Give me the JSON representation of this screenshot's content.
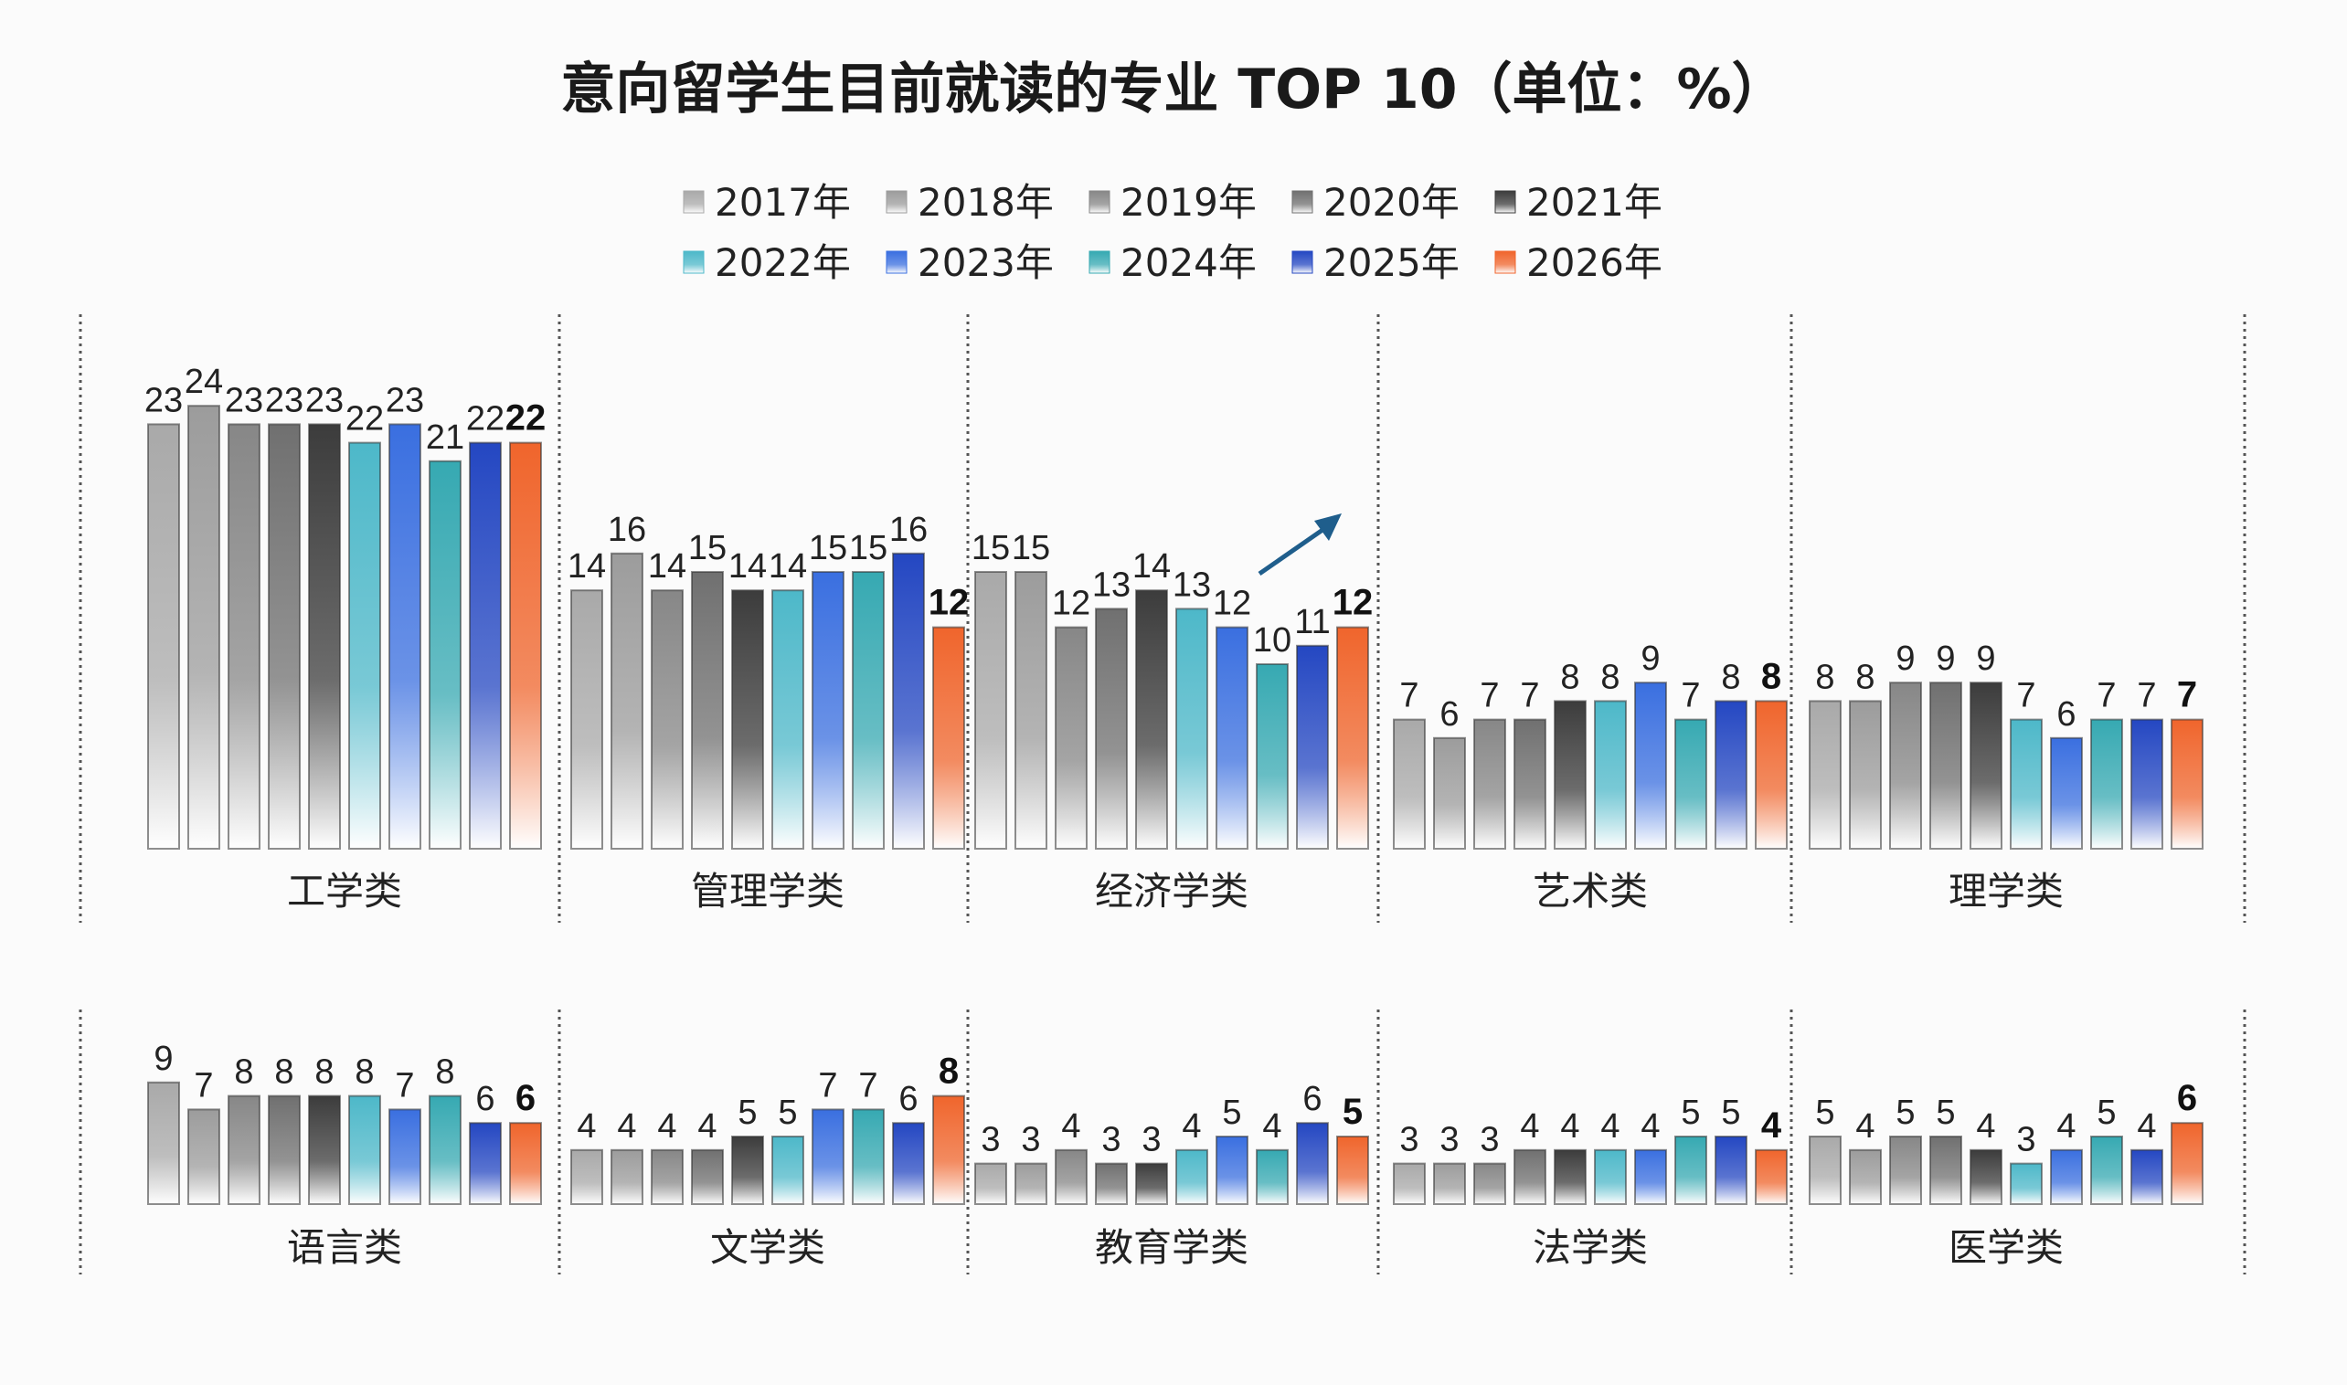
{
  "chart_data": {
    "type": "bar",
    "title": "意向留学生目前就读的专业 TOP 10（单位：%）",
    "legend_placement": "top",
    "grid": false,
    "series": [
      {
        "name": "2017年",
        "color": "#a9a9a9"
      },
      {
        "name": "2018年",
        "color": "#9c9c9c"
      },
      {
        "name": "2019年",
        "color": "#878787"
      },
      {
        "name": "2020年",
        "color": "#707070"
      },
      {
        "name": "2021年",
        "color": "#3c3c3c"
      },
      {
        "name": "2022年",
        "color": "#4db8c9"
      },
      {
        "name": "2023年",
        "color": "#3a6fe0"
      },
      {
        "name": "2024年",
        "color": "#36a9b2"
      },
      {
        "name": "2025年",
        "color": "#2447c2"
      },
      {
        "name": "2026年",
        "color": "#f0652c"
      }
    ],
    "categories": [
      "工学类",
      "管理学类",
      "经济学类",
      "艺术类",
      "理学类",
      "语言类",
      "文学类",
      "教育学类",
      "法学类",
      "医学类"
    ],
    "values": [
      [
        23,
        24,
        23,
        23,
        23,
        22,
        23,
        21,
        22,
        22
      ],
      [
        14,
        16,
        14,
        15,
        14,
        14,
        15,
        15,
        16,
        12
      ],
      [
        15,
        15,
        12,
        13,
        14,
        13,
        12,
        10,
        11,
        12
      ],
      [
        7,
        6,
        7,
        7,
        8,
        8,
        9,
        7,
        8,
        8
      ],
      [
        8,
        8,
        9,
        9,
        9,
        7,
        6,
        7,
        7,
        7
      ],
      [
        9,
        7,
        8,
        8,
        8,
        8,
        7,
        8,
        6,
        6
      ],
      [
        4,
        4,
        4,
        4,
        5,
        5,
        7,
        7,
        6,
        8
      ],
      [
        3,
        3,
        4,
        3,
        3,
        4,
        5,
        4,
        6,
        5
      ],
      [
        3,
        3,
        3,
        4,
        4,
        4,
        4,
        5,
        5,
        4
      ],
      [
        5,
        4,
        5,
        5,
        4,
        3,
        4,
        5,
        4,
        6
      ]
    ],
    "annotations": [
      {
        "type": "arrow",
        "panel": "经济学类",
        "direction": "up-right",
        "color": "#1f5e8c"
      }
    ]
  }
}
